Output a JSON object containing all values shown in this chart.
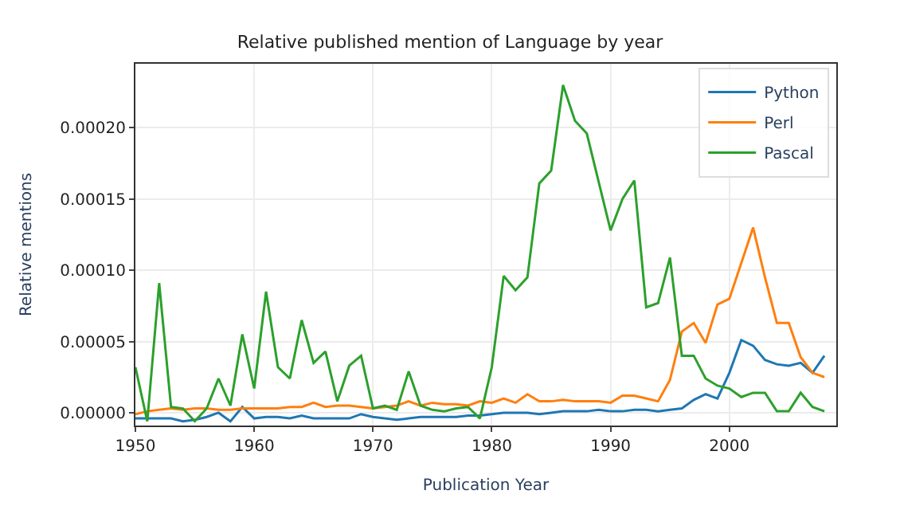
{
  "chart_data": {
    "type": "line",
    "title": "Relative published mention of Language by year",
    "xlabel": "Publication Year",
    "ylabel": "Relative mentions",
    "x": [
      1950,
      1951,
      1952,
      1953,
      1954,
      1955,
      1956,
      1957,
      1958,
      1959,
      1960,
      1961,
      1962,
      1963,
      1964,
      1965,
      1966,
      1967,
      1968,
      1969,
      1970,
      1971,
      1972,
      1973,
      1974,
      1975,
      1976,
      1977,
      1978,
      1979,
      1980,
      1981,
      1982,
      1983,
      1984,
      1985,
      1986,
      1987,
      1988,
      1989,
      1990,
      1991,
      1992,
      1993,
      1994,
      1995,
      1996,
      1997,
      1998,
      1999,
      2000,
      2001,
      2002,
      2003,
      2004,
      2005,
      2006,
      2007,
      2008
    ],
    "series": [
      {
        "name": "Python",
        "color": "#1f77b4",
        "values": [
          -4e-06,
          -4e-06,
          -4e-06,
          -4e-06,
          -6e-06,
          -5e-06,
          -3e-06,
          0.0,
          -6e-06,
          4e-06,
          -4e-06,
          -3e-06,
          -3e-06,
          -4e-06,
          -2e-06,
          -4e-06,
          -4e-06,
          -4e-06,
          -4e-06,
          -1e-06,
          -3e-06,
          -4e-06,
          -5e-06,
          -4e-06,
          -3e-06,
          -3e-06,
          -3e-06,
          -3e-06,
          -2e-06,
          -2e-06,
          -1e-06,
          0.0,
          0.0,
          0.0,
          -1e-06,
          0.0,
          1e-06,
          1e-06,
          1e-06,
          2e-06,
          1e-06,
          1e-06,
          2e-06,
          2e-06,
          1e-06,
          2e-06,
          3e-06,
          9e-06,
          1.3e-05,
          1e-05,
          2.8e-05,
          5.1e-05,
          4.7e-05,
          3.7e-05,
          3.4e-05,
          3.3e-05,
          3.5e-05,
          2.8e-05,
          4e-05
        ]
      },
      {
        "name": "Perl",
        "color": "#ff7f0e",
        "values": [
          -1e-06,
          1e-06,
          2e-06,
          3e-06,
          2e-06,
          3e-06,
          3e-06,
          2e-06,
          2e-06,
          3e-06,
          3e-06,
          3e-06,
          3e-06,
          4e-06,
          4e-06,
          7e-06,
          4e-06,
          5e-06,
          5e-06,
          4e-06,
          3e-06,
          4e-06,
          5e-06,
          8e-06,
          5e-06,
          7e-06,
          6e-06,
          6e-06,
          5e-06,
          8e-06,
          7e-06,
          1e-05,
          7e-06,
          1.3e-05,
          8e-06,
          8e-06,
          9e-06,
          8e-06,
          8e-06,
          8e-06,
          7e-06,
          1.2e-05,
          1.2e-05,
          1e-05,
          8e-06,
          2.3e-05,
          5.7e-05,
          6.3e-05,
          4.9e-05,
          7.6e-05,
          8e-05,
          0.000105,
          0.00013,
          9.5e-05,
          6.3e-05,
          6.3e-05,
          3.9e-05,
          2.8e-05,
          2.5e-05
        ]
      },
      {
        "name": "Pascal",
        "color": "#2ca02c",
        "values": [
          3.2e-05,
          -6e-06,
          9.1e-05,
          4e-06,
          3e-06,
          -6e-06,
          3e-06,
          2.4e-05,
          5e-06,
          5.5e-05,
          1.7e-05,
          8.5e-05,
          3.2e-05,
          2.4e-05,
          6.5e-05,
          3.5e-05,
          4.3e-05,
          8e-06,
          3.3e-05,
          4e-05,
          3e-06,
          5e-06,
          2e-06,
          2.9e-05,
          5e-06,
          2e-06,
          1e-06,
          3e-06,
          4e-06,
          -4e-06,
          3.2e-05,
          9.6e-05,
          8.6e-05,
          9.5e-05,
          0.000161,
          0.00017,
          0.00023,
          0.000205,
          0.000196,
          0.000162,
          0.000128,
          0.00015,
          0.000163,
          7.4e-05,
          7.7e-05,
          0.000109,
          4e-05,
          4e-05,
          2.4e-05,
          1.9e-05,
          1.7e-05,
          1.1e-05,
          1.4e-05,
          1.4e-05,
          1e-06,
          1e-06,
          1.4e-05,
          4e-06,
          1e-06
        ]
      }
    ],
    "xlim": [
      1950,
      2009
    ],
    "xticks": [
      1950,
      1960,
      1970,
      1980,
      1990,
      2000
    ],
    "ylim": [
      -9e-06,
      0.000245
    ],
    "yticks": [
      {
        "value": 0,
        "label": "0.00000"
      },
      {
        "value": 5e-05,
        "label": "0.00005"
      },
      {
        "value": 0.0001,
        "label": "0.00010"
      },
      {
        "value": 0.00015,
        "label": "0.00015"
      },
      {
        "value": 0.0002,
        "label": "0.00020"
      }
    ],
    "grid": true,
    "legend": "top right"
  }
}
